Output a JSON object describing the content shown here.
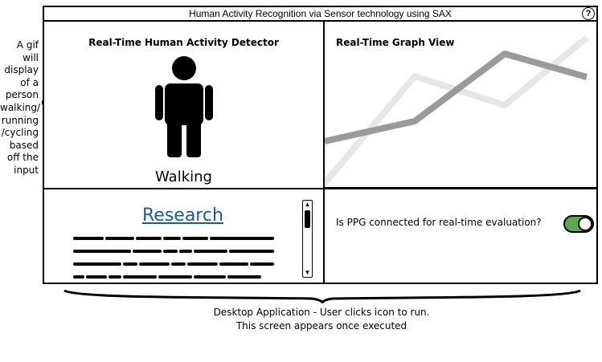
{
  "side_note": {
    "lines": [
      "A gif will",
      "display",
      "of a",
      "person",
      "walking/",
      "running",
      "/cycling",
      "based",
      "off the",
      "input"
    ]
  },
  "window": {
    "title": "Human Activity Recognition via Sensor technology using SAX",
    "help_icon": "question-circle-icon",
    "help_symbol": "?"
  },
  "detector": {
    "title": "Real-Time Human Activity Detector",
    "activity": "Walking",
    "figure_icon": "person-icon"
  },
  "graph": {
    "title": "Real-Time Graph View",
    "colors": {
      "dark_series": "#9a9a9a",
      "light_series": "#e6e6e6"
    }
  },
  "research": {
    "link_label": "Research",
    "link_color": "#1a5c9a"
  },
  "ppg": {
    "question": "Is PPG connected for real-time evaluation?",
    "toggle_on": true,
    "toggle_color": "#5fa84f"
  },
  "caption": {
    "line1": "Desktop Application - User clicks icon to run.",
    "line2": "This screen appears once executed"
  }
}
